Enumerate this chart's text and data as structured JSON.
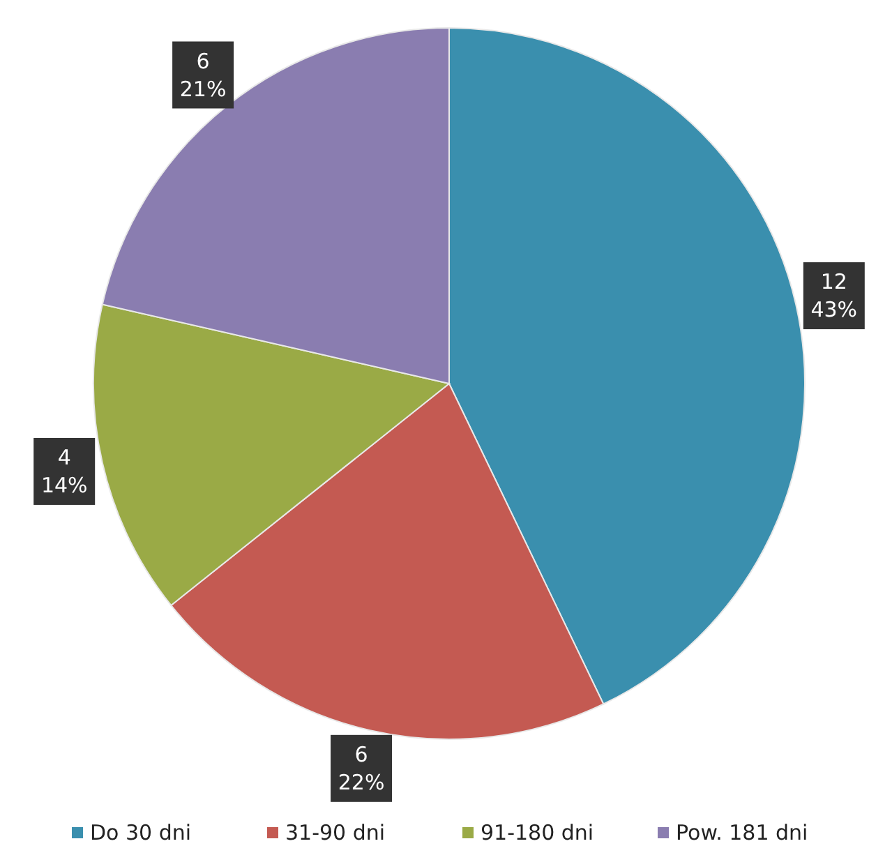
{
  "chart_data": {
    "type": "pie",
    "categories": [
      "Do 30 dni",
      "31-90 dni",
      "91-180 dni",
      "Pow. 181 dni"
    ],
    "values": [
      12,
      6,
      4,
      6
    ],
    "colors": [
      "#3a8fae",
      "#c45a52",
      "#9aaa46",
      "#8a7db0"
    ],
    "value_labels": [
      "12\n43%",
      "6\n22%",
      "4\n14%",
      "6\n21%"
    ],
    "legend": "bottom"
  }
}
